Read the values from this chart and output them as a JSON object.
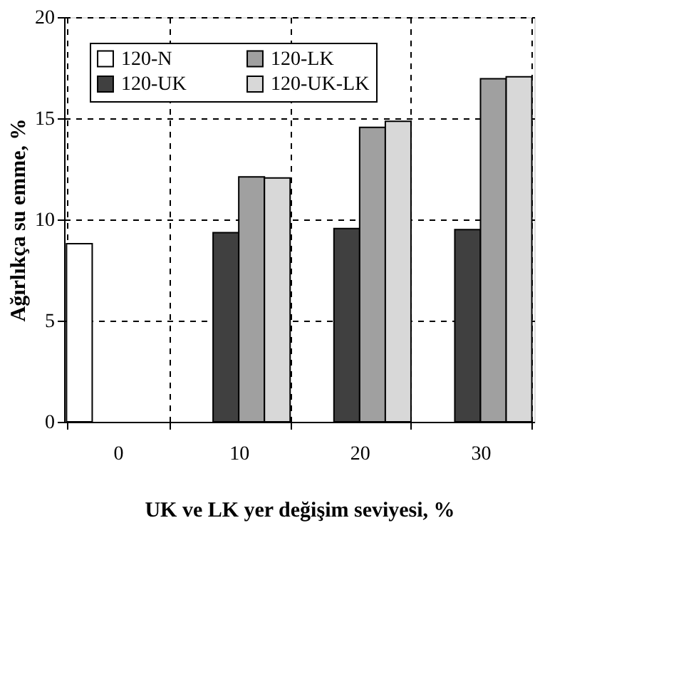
{
  "chart_data": {
    "type": "bar",
    "xlabel": "UK ve LK yer değişim seviyesi, %",
    "ylabel": "Ağırlıkça su emme, %",
    "categories": [
      "0",
      "10",
      "20",
      "30"
    ],
    "series": [
      {
        "name": "120-N",
        "color": "#ffffff",
        "values": [
          8.8,
          null,
          null,
          null
        ]
      },
      {
        "name": "120-UK",
        "color": "#404040",
        "values": [
          null,
          9.35,
          9.55,
          9.5
        ]
      },
      {
        "name": "120-LK",
        "color": "#a0a0a0",
        "values": [
          null,
          12.1,
          14.55,
          16.95
        ]
      },
      {
        "name": "120-UK-LK",
        "color": "#d8d8d8",
        "values": [
          null,
          12.05,
          14.85,
          17.05
        ]
      }
    ],
    "ylim": [
      0,
      20
    ],
    "yticks": [
      0,
      5,
      10,
      15,
      20
    ],
    "grid": true,
    "legend": "top left"
  }
}
